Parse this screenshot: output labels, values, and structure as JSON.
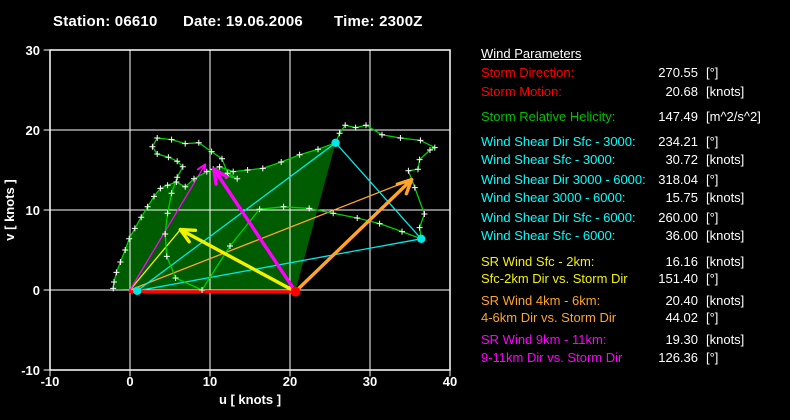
{
  "header": {
    "parts": [
      "Station: 06610",
      "Date: 19.06.2006",
      "Time: 2300Z"
    ]
  },
  "panel": {
    "title": "Wind Parameters",
    "value_color": "#ffffff",
    "rows": [
      {
        "label": "Storm Direction:",
        "value": "270.55",
        "unit": "[°]",
        "color": "#ff0000"
      },
      {
        "label": "Storm Motion:",
        "value": "20.68",
        "unit": "[knots]",
        "color": "#ff0000"
      },
      {
        "label": "Storm Relative Helicity:",
        "value": "147.49",
        "unit": "[m^2/s^2]",
        "color": "#00c000"
      },
      {
        "label": "Wind Shear Dir Sfc - 3000:",
        "value": "234.21",
        "unit": "[°]",
        "color": "#00ffff"
      },
      {
        "label": "Wind Shear Sfc - 3000:",
        "value": "30.72",
        "unit": "[knots]",
        "color": "#00ffff"
      },
      {
        "label": "Wind Shear Dir 3000 - 6000:",
        "value": "318.04",
        "unit": "[°]",
        "color": "#00ffff"
      },
      {
        "label": "Wind Shear 3000 - 6000:",
        "value": "15.75",
        "unit": "[knots]",
        "color": "#00ffff"
      },
      {
        "label": "Wind Shear Dir Sfc - 6000:",
        "value": "260.00",
        "unit": "[°]",
        "color": "#00ffff"
      },
      {
        "label": "Wind Shear Sfc - 6000:",
        "value": "36.00",
        "unit": "[knots]",
        "color": "#00ffff"
      },
      {
        "label": "SR Wind Sfc - 2km:",
        "value": "16.16",
        "unit": "[knots]",
        "color": "#f2f200"
      },
      {
        "label": "Sfc-2km Dir vs. Storm Dir",
        "value": "151.40",
        "unit": "[°]",
        "color": "#f2f200"
      },
      {
        "label": "SR Wind 4km - 6km:",
        "value": "20.40",
        "unit": "[knots]",
        "color": "#ffa428"
      },
      {
        "label": "4-6km Dir vs. Storm Dir",
        "value": "44.02",
        "unit": "[°]",
        "color": "#ffa428"
      },
      {
        "label": "SR Wind 9km - 11km:",
        "value": "19.30",
        "unit": "[knots]",
        "color": "#ff00ff"
      },
      {
        "label": "9-11km Dir vs. Storm Dir",
        "value": "126.36",
        "unit": "[°]",
        "color": "#ff00ff"
      }
    ]
  },
  "chart_data": {
    "type": "line",
    "title": "",
    "xlabel": "u  [ knots ]",
    "ylabel": "v  [ knots ]",
    "xlim": [
      -10,
      40
    ],
    "ylim": [
      -10,
      30
    ],
    "xticks": [
      -10,
      0,
      10,
      20,
      30,
      40
    ],
    "yticks": [
      -10,
      0,
      10,
      20,
      30
    ],
    "grid": true,
    "legend": "none",
    "colors": {
      "background": "#000000",
      "frame": "#ffffff",
      "grid": "#ffffff",
      "curve": "#00d000",
      "marker": "#ffffff",
      "area": "#005c00",
      "storm": "#ff0000",
      "shear": "#00e8e8",
      "sr_sfc2": "#f2f200",
      "sr_46": "#ffa428",
      "sr_911": "#ff00ff"
    },
    "series": [
      {
        "name": "hodograph-curve",
        "marker": "+",
        "points": [
          [
            -2.1,
            0.2
          ],
          [
            -2.0,
            1.0
          ],
          [
            -1.7,
            2.2
          ],
          [
            -1.2,
            3.5
          ],
          [
            -0.6,
            5.0
          ],
          [
            -0.1,
            6.4
          ],
          [
            0.6,
            7.7
          ],
          [
            1.4,
            9.1
          ],
          [
            2.2,
            10.4
          ],
          [
            3.0,
            11.7
          ],
          [
            3.8,
            12.7
          ],
          [
            4.7,
            13.1
          ],
          [
            5.8,
            13.5
          ],
          [
            6.9,
            12.9
          ],
          [
            8.0,
            13.9
          ],
          [
            9.6,
            14.8
          ],
          [
            11.2,
            15.4
          ],
          [
            12.9,
            14.8
          ],
          [
            14.7,
            15.0
          ],
          [
            16.6,
            15.2
          ],
          [
            18.9,
            16.0
          ],
          [
            21.2,
            16.9
          ],
          [
            23.5,
            17.6
          ],
          [
            25.7,
            18.4
          ],
          [
            26.2,
            19.6
          ],
          [
            26.9,
            20.6
          ],
          [
            28.2,
            20.3
          ],
          [
            29.5,
            20.6
          ],
          [
            31.5,
            19.4
          ],
          [
            33.8,
            19.0
          ],
          [
            36.3,
            18.7
          ],
          [
            38.1,
            17.8
          ],
          [
            37.5,
            17.5
          ],
          [
            36.2,
            16.3
          ],
          [
            36.0,
            15.1
          ],
          [
            34.8,
            14.9
          ],
          [
            35.6,
            12.8
          ],
          [
            36.8,
            9.5
          ],
          [
            36.2,
            7.8
          ],
          [
            36.4,
            6.4
          ],
          [
            34.0,
            7.3
          ],
          [
            31.2,
            8.3
          ],
          [
            28.4,
            9.0
          ],
          [
            25.4,
            9.6
          ],
          [
            22.4,
            10.2
          ],
          [
            19.2,
            10.4
          ],
          [
            16.2,
            10.1
          ],
          [
            12.5,
            5.5
          ],
          [
            9.0,
            0.0
          ],
          [
            5.7,
            1.5
          ],
          [
            4.6,
            4.2
          ],
          [
            4.4,
            7.0
          ],
          [
            4.7,
            9.6
          ],
          [
            5.2,
            12.1
          ],
          [
            5.9,
            14.1
          ],
          [
            6.6,
            15.4
          ],
          [
            5.9,
            16.1
          ],
          [
            4.8,
            16.6
          ],
          [
            3.4,
            17.0
          ],
          [
            2.8,
            17.9
          ],
          [
            3.4,
            19.0
          ],
          [
            5.2,
            18.8
          ],
          [
            6.9,
            18.3
          ],
          [
            8.6,
            18.4
          ],
          [
            10.2,
            17.3
          ],
          [
            11.5,
            16.4
          ],
          [
            12.2,
            14.6
          ],
          [
            13.4,
            13.9
          ],
          [
            12.0,
            14.3
          ],
          [
            10.4,
            15.1
          ]
        ]
      }
    ],
    "helicity_area": [
      [
        20.68,
        -0.1
      ],
      [
        0.9,
        -0.1
      ],
      [
        -2.1,
        0.2
      ],
      [
        -2.0,
        1.0
      ],
      [
        -1.7,
        2.2
      ],
      [
        -1.2,
        3.5
      ],
      [
        -0.6,
        5.0
      ],
      [
        -0.1,
        6.4
      ],
      [
        0.6,
        7.7
      ],
      [
        1.4,
        9.1
      ],
      [
        2.2,
        10.4
      ],
      [
        3.0,
        11.7
      ],
      [
        3.8,
        12.7
      ],
      [
        4.7,
        13.1
      ],
      [
        5.8,
        13.5
      ],
      [
        6.9,
        12.9
      ],
      [
        8.0,
        13.9
      ],
      [
        9.6,
        14.8
      ],
      [
        11.2,
        15.4
      ],
      [
        12.9,
        14.8
      ],
      [
        14.7,
        15.0
      ],
      [
        16.6,
        15.2
      ],
      [
        18.9,
        16.0
      ],
      [
        21.2,
        16.9
      ],
      [
        23.5,
        17.6
      ],
      [
        25.7,
        18.4
      ]
    ],
    "storm_motion_line": {
      "from": [
        0,
        -0.2
      ],
      "to": [
        20.68,
        -0.2
      ]
    },
    "storm_motion_dot": [
      20.68,
      -0.2
    ],
    "level_dots": [
      {
        "name": "surface-wind",
        "p": [
          0.9,
          -0.1
        ]
      },
      {
        "name": "3km-wind",
        "p": [
          25.7,
          18.4
        ]
      },
      {
        "name": "6km-wind",
        "p": [
          36.4,
          6.4
        ]
      }
    ],
    "shear_lines": [
      {
        "name": "shear-sfc-3000",
        "from": [
          0.9,
          -0.1
        ],
        "to": [
          25.7,
          18.4
        ]
      },
      {
        "name": "shear-3000-6000",
        "from": [
          25.7,
          18.4
        ],
        "to": [
          36.4,
          6.4
        ]
      },
      {
        "name": "shear-sfc-6000",
        "from": [
          0.9,
          -0.1
        ],
        "to": [
          36.4,
          6.4
        ]
      }
    ],
    "mean_wind_lines": [
      {
        "name": "mean-wind-sfc-2km",
        "color_key": "sr_sfc2",
        "from": [
          0,
          0
        ],
        "to": [
          6.3,
          7.55
        ],
        "arrow_head": false
      },
      {
        "name": "mean-wind-4-6km",
        "color_key": "sr_46",
        "from": [
          0,
          0
        ],
        "to": [
          35.2,
          13.8
        ],
        "arrow_head": false
      },
      {
        "name": "mean-wind-9-11km",
        "color_key": "sr_911",
        "from": [
          0,
          0
        ],
        "to": [
          9.4,
          15.7
        ],
        "arrow_head": true
      }
    ],
    "sr_arrows": [
      {
        "name": "sr-wind-sfc-2km-arrow",
        "color_key": "sr_sfc2",
        "from": [
          20.68,
          -0.2
        ],
        "to": [
          6.3,
          7.55
        ]
      },
      {
        "name": "sr-wind-9-11km-arrow",
        "color_key": "sr_911",
        "from": [
          20.68,
          -0.2
        ],
        "to": [
          10.5,
          15.1
        ]
      },
      {
        "name": "sr-wind-4-6km-arrow",
        "color_key": "sr_46",
        "from": [
          20.68,
          -0.2
        ],
        "to": [
          35.2,
          13.8
        ]
      }
    ]
  }
}
